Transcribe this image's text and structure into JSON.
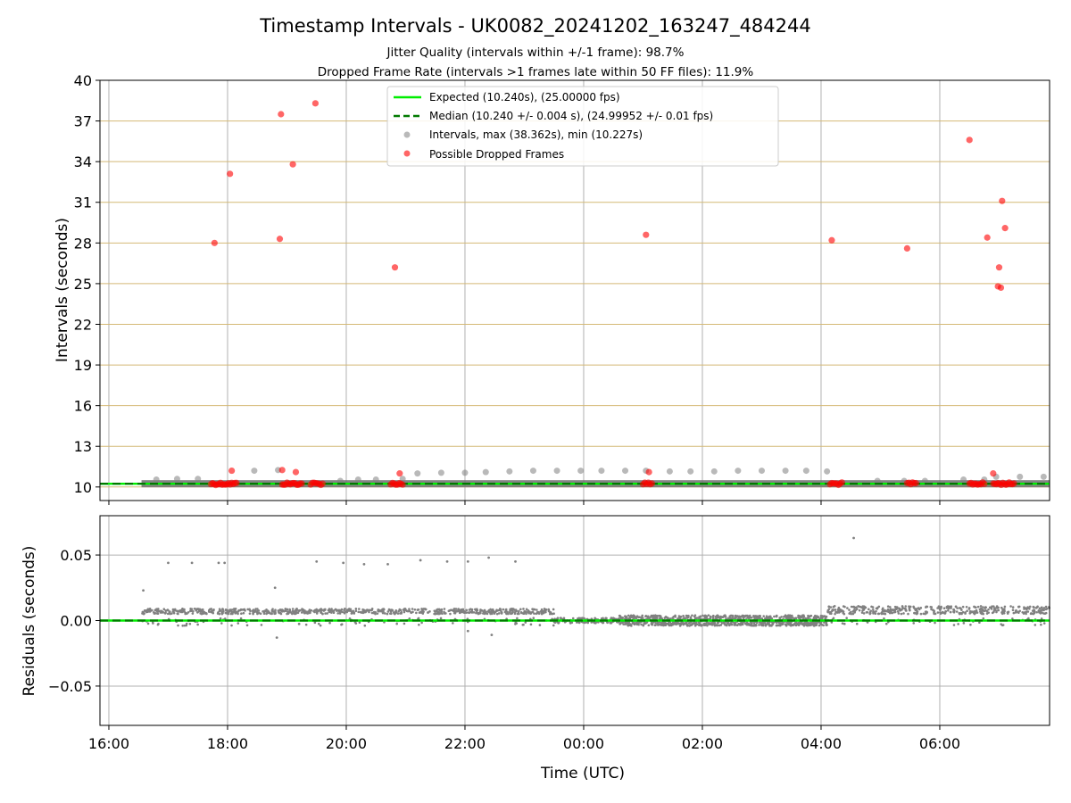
{
  "chart_data": {
    "type": "scatter",
    "title": "Timestamp Intervals - UK0082_20241202_163247_484244",
    "subtitle_lines": [
      "Jitter Quality (intervals within +/-1 frame): 98.7%",
      "Dropped Frame Rate (intervals >1 frames late within 50 FF files): 11.9%"
    ],
    "xlabel": "Time (UTC)",
    "x_ticks": [
      "16:00",
      "18:00",
      "20:00",
      "22:00",
      "00:00",
      "02:00",
      "04:00",
      "06:00"
    ],
    "x_range_hours": [
      15.85,
      31.85
    ],
    "colors": {
      "expected": "#00ee00",
      "median": "#007a00",
      "intervals": "#808080",
      "dropped": "#ff0000",
      "hgrid_top": "#d4b976",
      "grid": "#b0b0b0"
    },
    "top_panel": {
      "ylabel": "Intervals (seconds)",
      "ylim": [
        9,
        40
      ],
      "y_ticks": [
        "10",
        "13",
        "16",
        "19",
        "22",
        "25",
        "28",
        "31",
        "34",
        "37",
        "40"
      ],
      "y_tick_values": [
        10,
        13,
        16,
        19,
        22,
        25,
        28,
        31,
        34,
        37,
        40
      ],
      "expected_value": 10.24,
      "median_value": 10.24,
      "legend": [
        "Expected (10.240s), (25.00000 fps)",
        "Median (10.240 +/- 0.004 s), (24.99952 +/- 0.01 fps)",
        "Intervals, max (38.362s), min (10.227s)",
        "Possible Dropped Frames"
      ],
      "band": {
        "x_start": 16.55,
        "x_end": 31.85,
        "y": 10.24
      },
      "interval_points": [
        [
          16.8,
          10.55
        ],
        [
          17.15,
          10.6
        ],
        [
          17.5,
          10.6
        ],
        [
          18.45,
          11.2
        ],
        [
          18.85,
          11.25
        ],
        [
          19.9,
          10.45
        ],
        [
          20.2,
          10.55
        ],
        [
          20.5,
          10.55
        ],
        [
          20.95,
          10.6
        ],
        [
          21.2,
          11.0
        ],
        [
          21.6,
          11.05
        ],
        [
          22.0,
          11.05
        ],
        [
          22.35,
          11.1
        ],
        [
          22.75,
          11.15
        ],
        [
          23.15,
          11.2
        ],
        [
          23.55,
          11.2
        ],
        [
          23.95,
          11.2
        ],
        [
          24.3,
          11.2
        ],
        [
          24.7,
          11.2
        ],
        [
          25.05,
          11.2
        ],
        [
          25.45,
          11.15
        ],
        [
          25.8,
          11.15
        ],
        [
          26.2,
          11.15
        ],
        [
          26.6,
          11.2
        ],
        [
          27.0,
          11.2
        ],
        [
          27.4,
          11.2
        ],
        [
          27.75,
          11.2
        ],
        [
          28.1,
          11.15
        ],
        [
          28.95,
          10.45
        ],
        [
          29.4,
          10.45
        ],
        [
          29.75,
          10.45
        ],
        [
          30.4,
          10.55
        ],
        [
          30.75,
          10.55
        ],
        [
          30.95,
          10.75
        ],
        [
          31.35,
          10.75
        ],
        [
          31.75,
          10.75
        ]
      ],
      "dropped_points": [
        [
          17.78,
          28.0
        ],
        [
          18.04,
          33.1
        ],
        [
          18.07,
          11.2
        ],
        [
          18.88,
          28.3
        ],
        [
          18.9,
          37.5
        ],
        [
          18.92,
          11.25
        ],
        [
          19.1,
          33.8
        ],
        [
          19.15,
          11.1
        ],
        [
          19.48,
          38.3
        ],
        [
          20.82,
          26.2
        ],
        [
          20.9,
          11.0
        ],
        [
          25.05,
          28.6
        ],
        [
          25.1,
          11.1
        ],
        [
          28.18,
          28.2
        ],
        [
          29.45,
          27.6
        ],
        [
          30.5,
          35.6
        ],
        [
          30.8,
          28.4
        ],
        [
          30.9,
          11.0
        ],
        [
          30.98,
          24.8
        ],
        [
          31.0,
          26.2
        ],
        [
          31.03,
          24.7
        ],
        [
          31.05,
          31.1
        ],
        [
          31.1,
          29.1
        ]
      ],
      "dropped_clusters_at_base": [
        [
          17.72,
          18.15
        ],
        [
          18.92,
          19.25
        ],
        [
          19.4,
          19.6
        ],
        [
          20.75,
          20.95
        ],
        [
          25.0,
          25.15
        ],
        [
          28.15,
          28.35
        ],
        [
          29.45,
          29.6
        ],
        [
          30.5,
          30.75
        ],
        [
          30.9,
          31.25
        ]
      ]
    },
    "bottom_panel": {
      "ylabel": "Residuals (seconds)",
      "ylim": [
        -0.08,
        0.08
      ],
      "y_ticks": [
        "0.05",
        "0.00",
        "−0.05"
      ],
      "y_tick_values": [
        0.05,
        0.0,
        -0.05
      ],
      "outliers": [
        [
          16.58,
          0.023
        ],
        [
          17.0,
          0.044
        ],
        [
          17.4,
          0.044
        ],
        [
          17.85,
          0.044
        ],
        [
          17.95,
          0.044
        ],
        [
          18.8,
          0.025
        ],
        [
          19.5,
          0.045
        ],
        [
          19.95,
          0.044
        ],
        [
          20.3,
          0.043
        ],
        [
          20.7,
          0.043
        ],
        [
          21.25,
          0.046
        ],
        [
          21.7,
          0.045
        ],
        [
          22.05,
          0.045
        ],
        [
          22.4,
          0.048
        ],
        [
          22.85,
          0.045
        ],
        [
          28.55,
          0.063
        ],
        [
          18.83,
          -0.013
        ],
        [
          22.45,
          -0.011
        ],
        [
          22.05,
          -0.008
        ]
      ],
      "segments": [
        {
          "x": [
            16.55,
            19.85
          ],
          "center": 0.007,
          "spread": 0.002,
          "spikes": true
        },
        {
          "x": [
            19.85,
            20.5
          ],
          "center": 0.007,
          "spread": 0.002,
          "spikes": true
        },
        {
          "x": [
            20.5,
            23.5
          ],
          "center": 0.007,
          "spread": 0.002,
          "spikes": true
        },
        {
          "x": [
            23.5,
            24.6
          ],
          "center": 0.0,
          "spread": 0.002,
          "spikes": false
        },
        {
          "x": [
            24.6,
            28.1
          ],
          "center": 0.0,
          "spread": 0.004,
          "spikes": false
        },
        {
          "x": [
            28.1,
            31.85
          ],
          "center": 0.008,
          "spread": 0.003,
          "spikes": true
        }
      ]
    }
  }
}
